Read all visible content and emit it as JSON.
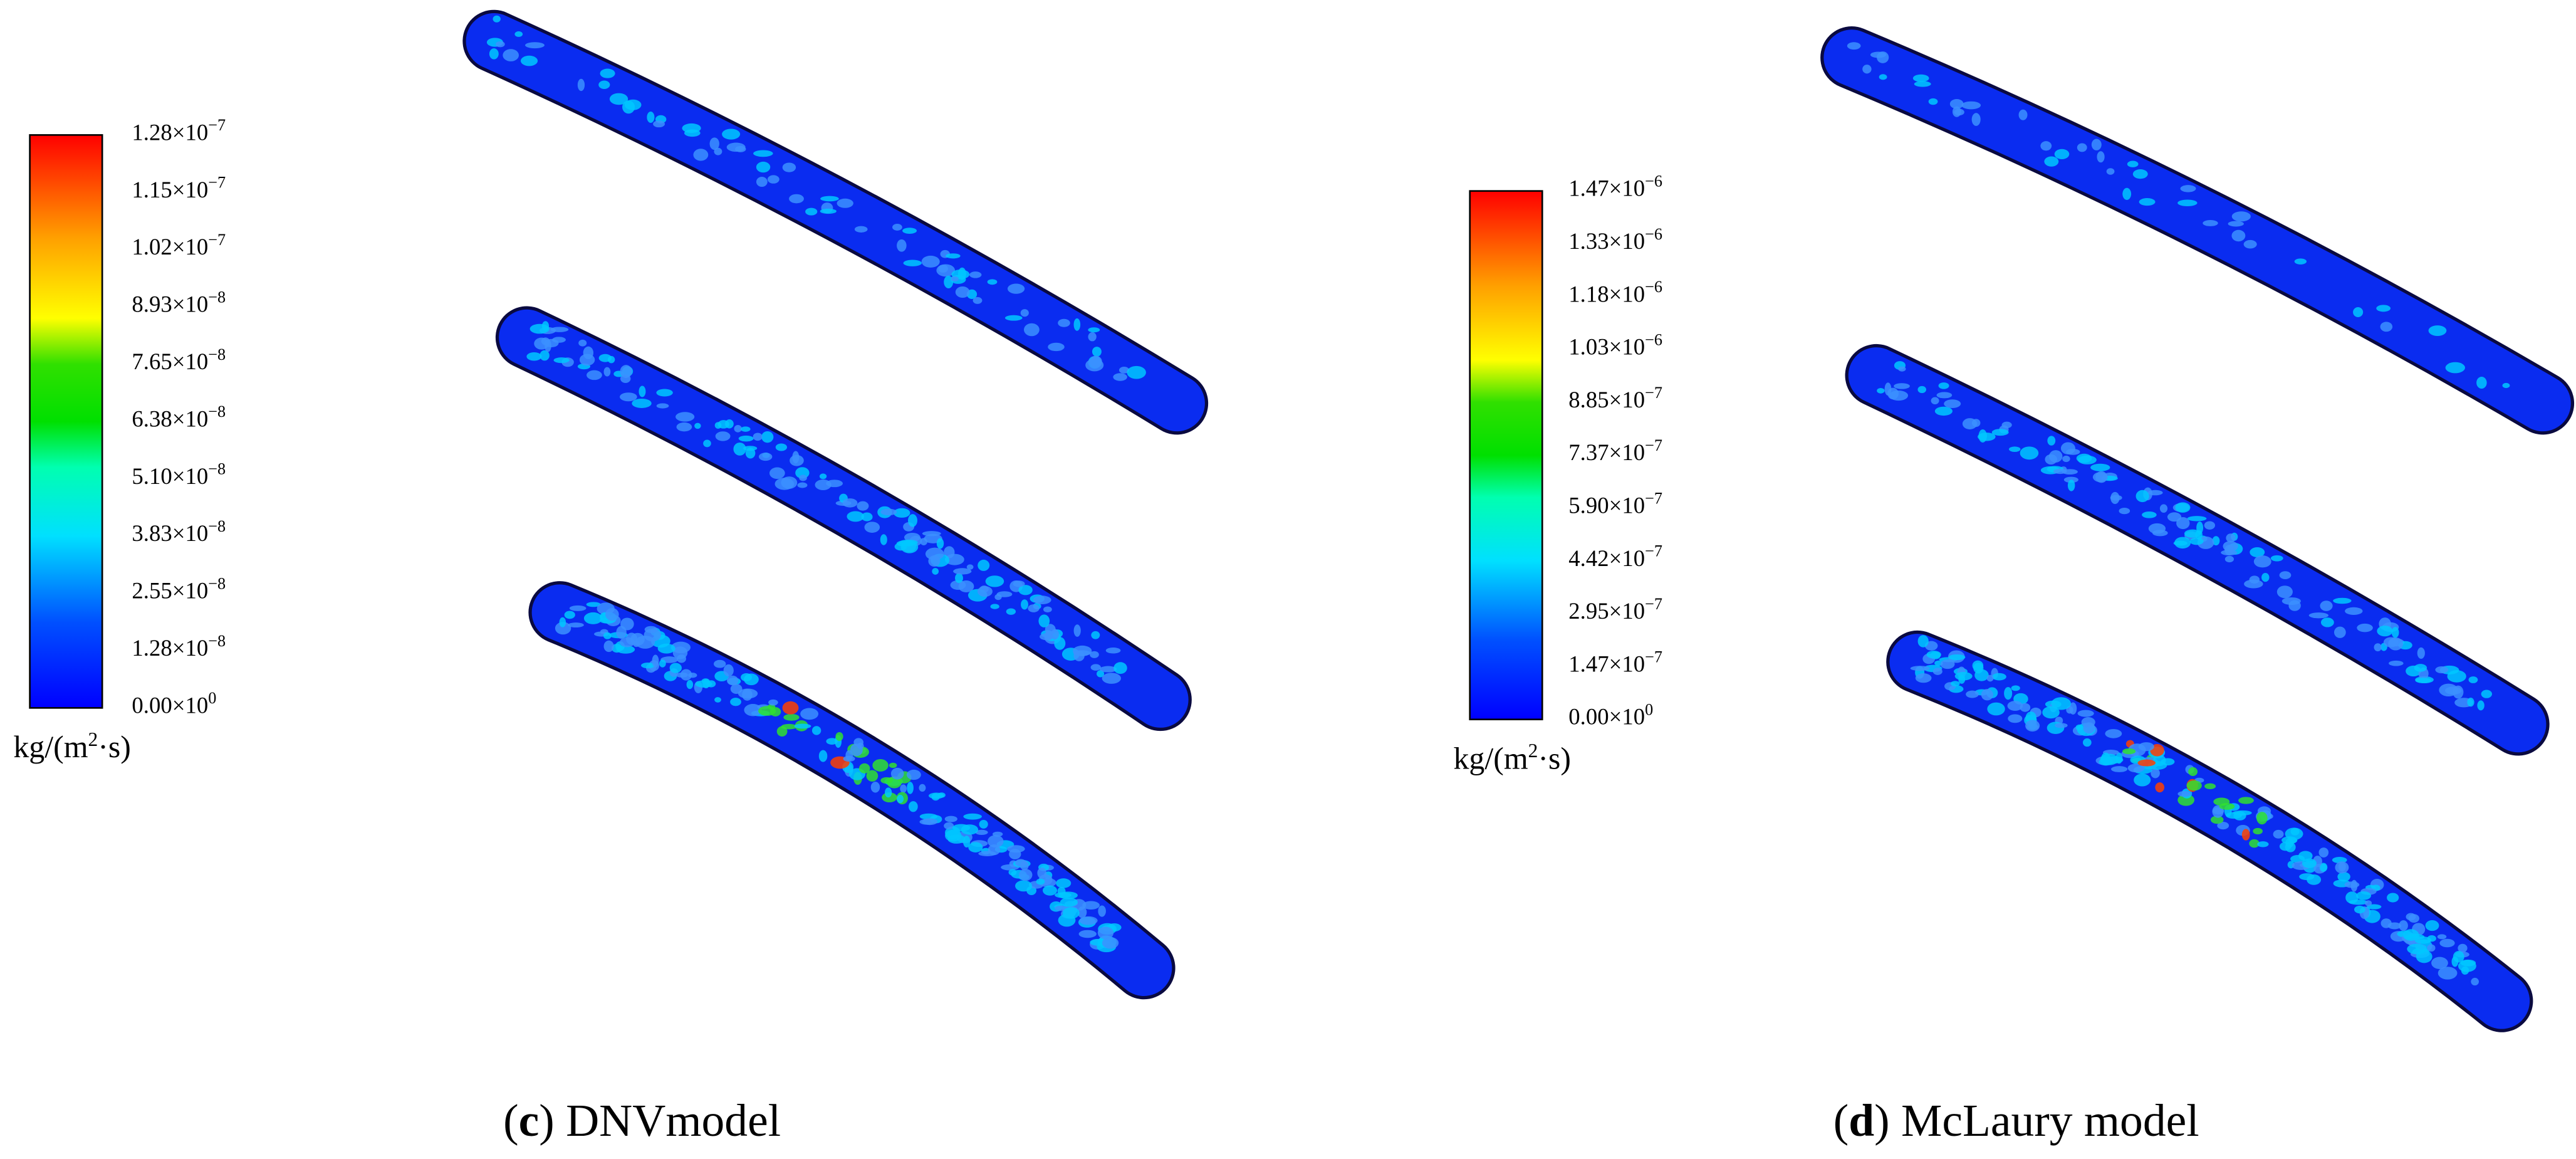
{
  "panels": [
    {
      "colorbar": {
        "labels": [
          {
            "base": "1.28×10",
            "exp": "−7"
          },
          {
            "base": "1.15×10",
            "exp": "−7"
          },
          {
            "base": "1.02×10",
            "exp": "−7"
          },
          {
            "base": "8.93×10",
            "exp": "−8"
          },
          {
            "base": "7.65×10",
            "exp": "−8"
          },
          {
            "base": "6.38×10",
            "exp": "−8"
          },
          {
            "base": "5.10×10",
            "exp": "−8"
          },
          {
            "base": "3.83×10",
            "exp": "−8"
          },
          {
            "base": "2.55×10",
            "exp": "−8"
          },
          {
            "base": "1.28×10",
            "exp": "−8"
          },
          {
            "base": "0.00×10",
            "exp": "0"
          }
        ],
        "unit": {
          "pre": "kg/(m",
          "exp": "2",
          "post": "·s)"
        }
      },
      "caption": {
        "open": "(",
        "label": "c",
        "rest": ") DNVmodel"
      }
    },
    {
      "colorbar": {
        "labels": [
          {
            "base": "1.47×10",
            "exp": "−6"
          },
          {
            "base": "1.33×10",
            "exp": "−6"
          },
          {
            "base": "1.18×10",
            "exp": "−6"
          },
          {
            "base": "1.03×10",
            "exp": "−6"
          },
          {
            "base": "8.85×10",
            "exp": "−7"
          },
          {
            "base": "7.37×10",
            "exp": "−7"
          },
          {
            "base": "5.90×10",
            "exp": "−7"
          },
          {
            "base": "4.42×10",
            "exp": "−7"
          },
          {
            "base": "2.95×10",
            "exp": "−7"
          },
          {
            "base": "1.47×10",
            "exp": "−7"
          },
          {
            "base": "0.00×10",
            "exp": "0"
          }
        ],
        "unit": {
          "pre": "kg/(m",
          "exp": "2",
          "post": "·s)"
        }
      },
      "caption": {
        "open": "(",
        "label": "d",
        "rest": ") McLaury model"
      }
    }
  ]
}
